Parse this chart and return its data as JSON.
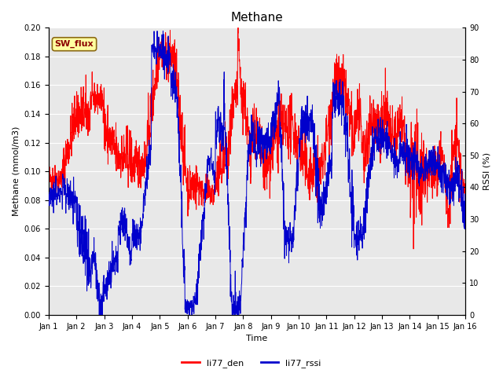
{
  "title": "Methane",
  "xlabel": "Time",
  "ylabel_left": "Methane (mmol/m3)",
  "ylabel_right": "RSSI (%)",
  "ylim_left": [
    0.0,
    0.2
  ],
  "ylim_right": [
    0,
    90
  ],
  "yticks_left": [
    0.0,
    0.02,
    0.04,
    0.06,
    0.08,
    0.1,
    0.12,
    0.14,
    0.16,
    0.18,
    0.2
  ],
  "yticks_right": [
    0,
    10,
    20,
    30,
    40,
    50,
    60,
    70,
    80,
    90
  ],
  "xtick_labels": [
    "Jan 1",
    "Jan 2",
    "Jan 3",
    "Jan 4",
    "Jan 5",
    "Jan 6",
    "Jan 7",
    "Jan 8",
    "Jan 9",
    "Jan 10",
    "Jan 11",
    "Jan 12",
    "Jan 13",
    "Jan 14",
    "Jan 15",
    "Jan 16"
  ],
  "color_red": "#ff0000",
  "color_blue": "#0000cc",
  "background_color": "#e8e8e8",
  "figure_background": "#ffffff",
  "legend_labels": [
    "li77_den",
    "li77_rssi"
  ],
  "sw_flux_label": "SW_flux",
  "sw_flux_bg": "#ffffa0",
  "sw_flux_border": "#8b6914",
  "title_fontsize": 11,
  "axis_fontsize": 8,
  "tick_fontsize": 7,
  "legend_fontsize": 8
}
